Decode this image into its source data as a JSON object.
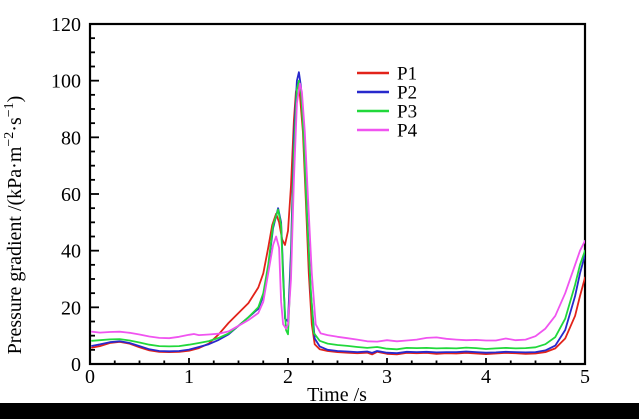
{
  "figure": {
    "background": "#ffffff",
    "footer_bar_color": "#000000",
    "frame_color": "#000000"
  },
  "chart_data": {
    "type": "line",
    "title": "",
    "xlabel": "Time /s",
    "ylabel": "Pressure gradient /(kPa·m⁻²·s⁻¹)",
    "ylabel_parts": [
      {
        "text": "Pressure gradient /(kPa·m"
      },
      {
        "text": "−2",
        "sup": true
      },
      {
        "text": "·s"
      },
      {
        "text": "−1",
        "sup": true
      },
      {
        "text": ")"
      }
    ],
    "xlim": [
      0,
      5
    ],
    "ylim": [
      0,
      120
    ],
    "x_major_ticks": [
      0,
      1,
      2,
      3,
      4,
      5
    ],
    "x_minor_step": 0.25,
    "y_major_ticks": [
      0,
      20,
      40,
      60,
      80,
      100,
      120
    ],
    "y_minor_step": 5,
    "grid": false,
    "legend_position": "upper-center",
    "legend_entries": [
      "P1",
      "P2",
      "P3",
      "P4"
    ],
    "series": [
      {
        "name": "P1",
        "color": "#e2231a",
        "points": [
          [
            0.02,
            5.8
          ],
          [
            0.1,
            6.3
          ],
          [
            0.2,
            7.4
          ],
          [
            0.3,
            7.8
          ],
          [
            0.4,
            7.2
          ],
          [
            0.5,
            5.9
          ],
          [
            0.6,
            4.8
          ],
          [
            0.7,
            4.3
          ],
          [
            0.8,
            4.2
          ],
          [
            0.9,
            4.3
          ],
          [
            1.0,
            4.7
          ],
          [
            1.1,
            5.6
          ],
          [
            1.2,
            7.2
          ],
          [
            1.3,
            10.5
          ],
          [
            1.4,
            14.5
          ],
          [
            1.5,
            18
          ],
          [
            1.6,
            21.5
          ],
          [
            1.7,
            27
          ],
          [
            1.75,
            32
          ],
          [
            1.8,
            41
          ],
          [
            1.84,
            49
          ],
          [
            1.88,
            53
          ],
          [
            1.91,
            50
          ],
          [
            1.94,
            44
          ],
          [
            1.97,
            42
          ],
          [
            2.0,
            47
          ],
          [
            2.03,
            63
          ],
          [
            2.06,
            86
          ],
          [
            2.08,
            96
          ],
          [
            2.1,
            99
          ],
          [
            2.12,
            95
          ],
          [
            2.15,
            82
          ],
          [
            2.18,
            58
          ],
          [
            2.21,
            32
          ],
          [
            2.24,
            14
          ],
          [
            2.27,
            7
          ],
          [
            2.32,
            5.2
          ],
          [
            2.4,
            4.6
          ],
          [
            2.5,
            4.2
          ],
          [
            2.6,
            4.0
          ],
          [
            2.7,
            3.8
          ],
          [
            2.8,
            4.0
          ],
          [
            2.85,
            3.4
          ],
          [
            2.9,
            4.3
          ],
          [
            3.0,
            3.6
          ],
          [
            3.1,
            3.4
          ],
          [
            3.2,
            3.9
          ],
          [
            3.3,
            3.8
          ],
          [
            3.4,
            3.9
          ],
          [
            3.5,
            3.6
          ],
          [
            3.6,
            3.8
          ],
          [
            3.7,
            3.7
          ],
          [
            3.8,
            3.9
          ],
          [
            3.9,
            3.7
          ],
          [
            4.0,
            3.5
          ],
          [
            4.1,
            3.7
          ],
          [
            4.2,
            3.9
          ],
          [
            4.3,
            3.8
          ],
          [
            4.4,
            3.6
          ],
          [
            4.5,
            3.7
          ],
          [
            4.6,
            4.2
          ],
          [
            4.7,
            5.5
          ],
          [
            4.8,
            9
          ],
          [
            4.9,
            17
          ],
          [
            4.95,
            24
          ],
          [
            5.0,
            30.5
          ]
        ]
      },
      {
        "name": "P2",
        "color": "#2829cc",
        "points": [
          [
            0.02,
            6.4
          ],
          [
            0.1,
            6.9
          ],
          [
            0.2,
            7.7
          ],
          [
            0.3,
            8.0
          ],
          [
            0.4,
            7.4
          ],
          [
            0.5,
            6.3
          ],
          [
            0.6,
            5.2
          ],
          [
            0.7,
            4.6
          ],
          [
            0.8,
            4.5
          ],
          [
            0.9,
            4.6
          ],
          [
            1.0,
            5.1
          ],
          [
            1.1,
            6.0
          ],
          [
            1.2,
            7.0
          ],
          [
            1.3,
            8.5
          ],
          [
            1.4,
            10.5
          ],
          [
            1.5,
            13.5
          ],
          [
            1.6,
            16.5
          ],
          [
            1.7,
            19.5
          ],
          [
            1.75,
            24
          ],
          [
            1.8,
            34
          ],
          [
            1.85,
            48
          ],
          [
            1.9,
            55
          ],
          [
            1.93,
            50
          ],
          [
            1.95,
            33
          ],
          [
            1.97,
            16
          ],
          [
            2.0,
            15
          ],
          [
            2.03,
            40
          ],
          [
            2.06,
            80
          ],
          [
            2.09,
            100
          ],
          [
            2.11,
            103
          ],
          [
            2.13,
            98
          ],
          [
            2.16,
            80
          ],
          [
            2.19,
            55
          ],
          [
            2.23,
            25
          ],
          [
            2.27,
            9
          ],
          [
            2.32,
            6.2
          ],
          [
            2.4,
            5.0
          ],
          [
            2.5,
            4.6
          ],
          [
            2.6,
            4.4
          ],
          [
            2.7,
            4.2
          ],
          [
            2.8,
            4.4
          ],
          [
            2.85,
            3.9
          ],
          [
            2.9,
            4.6
          ],
          [
            3.0,
            4.0
          ],
          [
            3.1,
            3.8
          ],
          [
            3.2,
            4.3
          ],
          [
            3.3,
            4.2
          ],
          [
            3.4,
            4.3
          ],
          [
            3.5,
            4.1
          ],
          [
            3.6,
            4.2
          ],
          [
            3.7,
            4.2
          ],
          [
            3.8,
            4.4
          ],
          [
            3.9,
            4.2
          ],
          [
            4.0,
            4.0
          ],
          [
            4.1,
            4.1
          ],
          [
            4.2,
            4.3
          ],
          [
            4.3,
            4.2
          ],
          [
            4.4,
            4.1
          ],
          [
            4.5,
            4.2
          ],
          [
            4.6,
            4.8
          ],
          [
            4.7,
            6.5
          ],
          [
            4.8,
            12
          ],
          [
            4.9,
            24
          ],
          [
            4.95,
            32
          ],
          [
            5.0,
            38.5
          ]
        ]
      },
      {
        "name": "P3",
        "color": "#21d83b",
        "points": [
          [
            0.02,
            8.2
          ],
          [
            0.1,
            8.4
          ],
          [
            0.2,
            8.7
          ],
          [
            0.3,
            8.8
          ],
          [
            0.4,
            8.3
          ],
          [
            0.5,
            7.6
          ],
          [
            0.6,
            6.8
          ],
          [
            0.7,
            6.3
          ],
          [
            0.8,
            6.2
          ],
          [
            0.9,
            6.3
          ],
          [
            1.0,
            6.8
          ],
          [
            1.1,
            7.4
          ],
          [
            1.2,
            8.1
          ],
          [
            1.3,
            9.2
          ],
          [
            1.4,
            10.8
          ],
          [
            1.5,
            13.5
          ],
          [
            1.6,
            16.5
          ],
          [
            1.7,
            20
          ],
          [
            1.75,
            25
          ],
          [
            1.8,
            35
          ],
          [
            1.85,
            49
          ],
          [
            1.9,
            54.5
          ],
          [
            1.93,
            49
          ],
          [
            1.95,
            30
          ],
          [
            1.98,
            12
          ],
          [
            2.0,
            10.5
          ],
          [
            2.03,
            35
          ],
          [
            2.06,
            75
          ],
          [
            2.09,
            97
          ],
          [
            2.11,
            100
          ],
          [
            2.13,
            97
          ],
          [
            2.16,
            79
          ],
          [
            2.19,
            54
          ],
          [
            2.23,
            26
          ],
          [
            2.26,
            11
          ],
          [
            2.32,
            8.2
          ],
          [
            2.4,
            7.2
          ],
          [
            2.5,
            6.7
          ],
          [
            2.6,
            6.4
          ],
          [
            2.7,
            6.0
          ],
          [
            2.8,
            5.7
          ],
          [
            2.9,
            6.0
          ],
          [
            3.0,
            5.4
          ],
          [
            3.1,
            5.2
          ],
          [
            3.2,
            5.7
          ],
          [
            3.3,
            5.6
          ],
          [
            3.4,
            5.7
          ],
          [
            3.5,
            5.5
          ],
          [
            3.6,
            5.6
          ],
          [
            3.7,
            5.5
          ],
          [
            3.8,
            5.8
          ],
          [
            3.9,
            5.6
          ],
          [
            4.0,
            5.3
          ],
          [
            4.1,
            5.5
          ],
          [
            4.2,
            5.7
          ],
          [
            4.3,
            5.5
          ],
          [
            4.4,
            5.6
          ],
          [
            4.5,
            5.9
          ],
          [
            4.6,
            7.0
          ],
          [
            4.7,
            9.5
          ],
          [
            4.8,
            16
          ],
          [
            4.9,
            28
          ],
          [
            4.95,
            35
          ],
          [
            5.0,
            40
          ]
        ]
      },
      {
        "name": "P4",
        "color": "#f054f0",
        "points": [
          [
            0.02,
            11.4
          ],
          [
            0.1,
            11.1
          ],
          [
            0.2,
            11.3
          ],
          [
            0.3,
            11.4
          ],
          [
            0.4,
            11.0
          ],
          [
            0.5,
            10.4
          ],
          [
            0.6,
            9.7
          ],
          [
            0.7,
            9.2
          ],
          [
            0.8,
            9.1
          ],
          [
            0.9,
            9.6
          ],
          [
            1.0,
            10.3
          ],
          [
            1.05,
            10.6
          ],
          [
            1.1,
            10.2
          ],
          [
            1.2,
            10.4
          ],
          [
            1.3,
            10.7
          ],
          [
            1.4,
            11.5
          ],
          [
            1.5,
            13.5
          ],
          [
            1.6,
            15.5
          ],
          [
            1.7,
            18
          ],
          [
            1.75,
            22
          ],
          [
            1.8,
            32
          ],
          [
            1.85,
            42
          ],
          [
            1.88,
            45
          ],
          [
            1.91,
            41
          ],
          [
            1.93,
            22
          ],
          [
            1.95,
            14
          ],
          [
            1.98,
            12.5
          ],
          [
            2.0,
            14
          ],
          [
            2.03,
            30
          ],
          [
            2.06,
            65
          ],
          [
            2.09,
            92
          ],
          [
            2.12,
            99
          ],
          [
            2.14,
            96
          ],
          [
            2.17,
            82
          ],
          [
            2.2,
            60
          ],
          [
            2.24,
            32
          ],
          [
            2.28,
            14
          ],
          [
            2.33,
            10.8
          ],
          [
            2.4,
            10.2
          ],
          [
            2.5,
            9.6
          ],
          [
            2.6,
            9.1
          ],
          [
            2.7,
            8.6
          ],
          [
            2.8,
            8.0
          ],
          [
            2.9,
            7.9
          ],
          [
            3.0,
            8.4
          ],
          [
            3.1,
            8.0
          ],
          [
            3.2,
            8.3
          ],
          [
            3.3,
            8.6
          ],
          [
            3.4,
            9.2
          ],
          [
            3.5,
            9.4
          ],
          [
            3.6,
            8.9
          ],
          [
            3.7,
            8.6
          ],
          [
            3.8,
            8.4
          ],
          [
            3.9,
            8.5
          ],
          [
            4.0,
            8.3
          ],
          [
            4.1,
            8.3
          ],
          [
            4.2,
            9.0
          ],
          [
            4.3,
            8.4
          ],
          [
            4.4,
            8.6
          ],
          [
            4.5,
            9.8
          ],
          [
            4.6,
            12.5
          ],
          [
            4.7,
            17
          ],
          [
            4.8,
            25
          ],
          [
            4.9,
            35
          ],
          [
            4.95,
            40
          ],
          [
            5.0,
            43.5
          ]
        ]
      }
    ]
  }
}
